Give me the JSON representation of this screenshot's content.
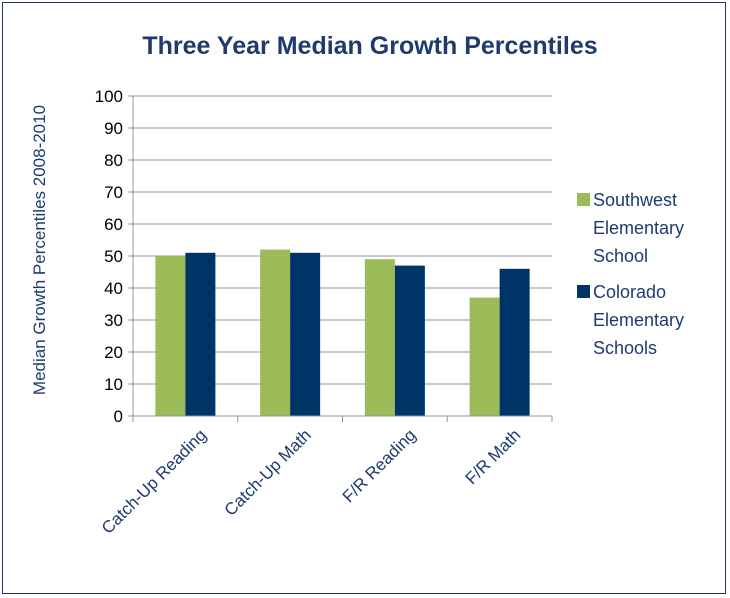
{
  "chart_data": {
    "type": "bar",
    "title": "Three Year Median Growth Percentiles",
    "ylabel": "Median Growth Percentiles 2008-2010",
    "xlabel": "",
    "categories": [
      "Catch-Up Reading",
      "Catch-Up Math",
      "F/R Reading",
      "F/R Math"
    ],
    "ylim": [
      0,
      100
    ],
    "yticks": [
      0,
      10,
      20,
      30,
      40,
      50,
      60,
      70,
      80,
      90,
      100
    ],
    "grid": true,
    "legend_position": "right",
    "series": [
      {
        "name": "Southwest Elementary School",
        "legend_lines": [
          "Southwest",
          "Elementary",
          "School"
        ],
        "color": "#9bbb59",
        "values": [
          50,
          52,
          49,
          37
        ]
      },
      {
        "name": "Colorado Elementary Schools",
        "legend_lines": [
          "Colorado",
          "Elementary",
          "Schools"
        ],
        "color": "#003366",
        "values": [
          51,
          51,
          47,
          46
        ]
      }
    ]
  }
}
